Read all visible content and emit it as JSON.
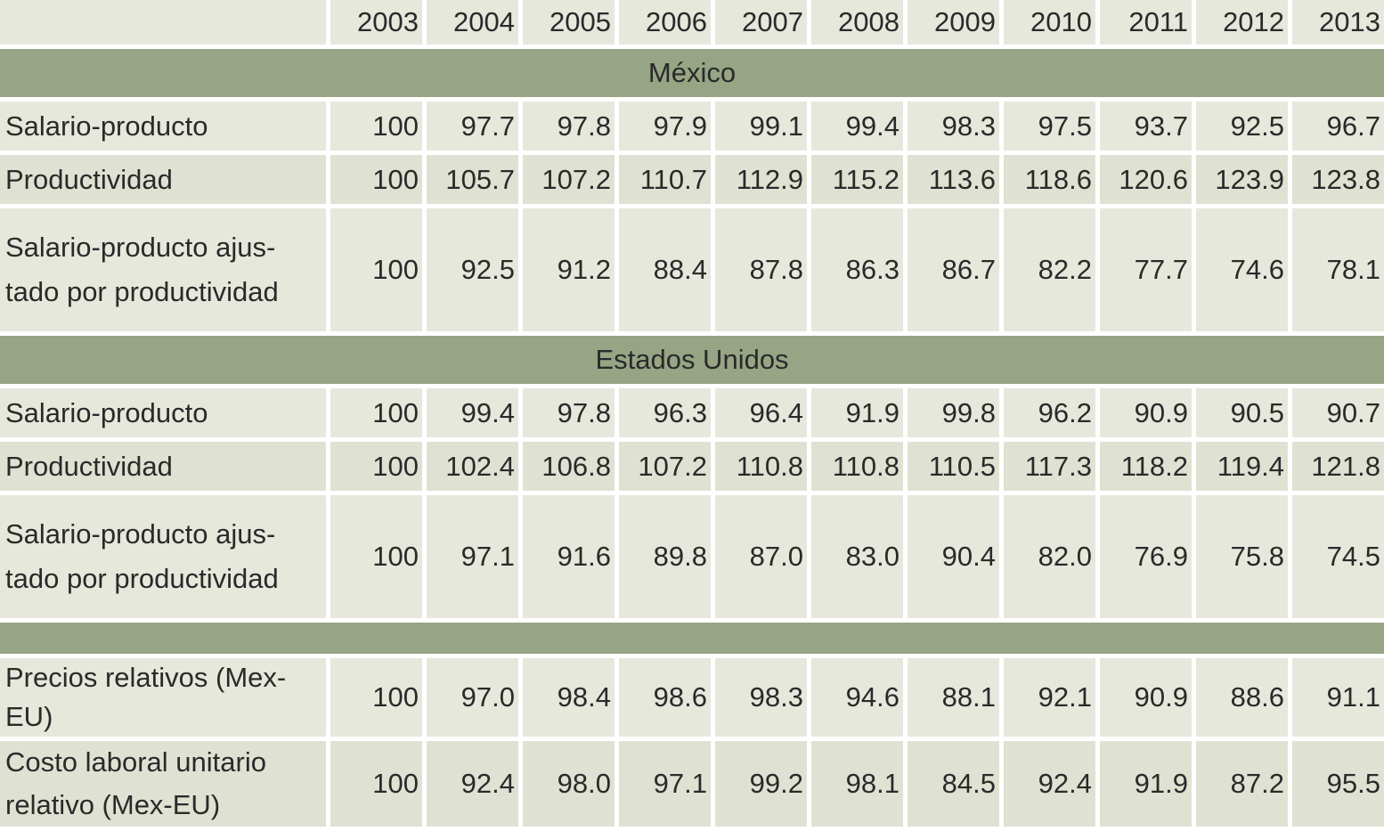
{
  "years": [
    "2003",
    "2004",
    "2005",
    "2006",
    "2007",
    "2008",
    "2009",
    "2010",
    "2011",
    "2012",
    "2013"
  ],
  "sections": [
    {
      "title": "México",
      "rows": [
        {
          "label": "Salario-producto",
          "values": [
            "100",
            "97.7",
            "97.8",
            "97.9",
            "99.1",
            "99.4",
            "98.3",
            "97.5",
            "93.7",
            "92.5",
            "96.7"
          ]
        },
        {
          "label": "Productividad",
          "values": [
            "100",
            "105.7",
            "107.2",
            "110.7",
            "112.9",
            "115.2",
            "113.6",
            "118.6",
            "120.6",
            "123.9",
            "123.8"
          ]
        },
        {
          "label": "Salario-producto ajus-tado por productividad",
          "values": [
            "100",
            "92.5",
            "91.2",
            "88.4",
            "87.8",
            "86.3",
            "86.7",
            "82.2",
            "77.7",
            "74.6",
            "78.1"
          ]
        }
      ]
    },
    {
      "title": "Estados Unidos",
      "rows": [
        {
          "label": "Salario-producto",
          "values": [
            "100",
            "99.4",
            "97.8",
            "96.3",
            "96.4",
            "91.9",
            "99.8",
            "96.2",
            "90.9",
            "90.5",
            "90.7"
          ]
        },
        {
          "label": "Productividad",
          "values": [
            "100",
            "102.4",
            "106.8",
            "107.2",
            "110.8",
            "110.8",
            "110.5",
            "117.3",
            "118.2",
            "119.4",
            "121.8"
          ]
        },
        {
          "label": "Salario-producto ajus-tado por productividad",
          "values": [
            "100",
            "97.1",
            "91.6",
            "89.8",
            "87.0",
            "83.0",
            "90.4",
            "82.0",
            "76.9",
            "75.8",
            "74.5"
          ]
        }
      ]
    },
    {
      "title": "",
      "rows": [
        {
          "label": "Precios relativos (Mex-EU)",
          "values": [
            "100",
            "97.0",
            "98.4",
            "98.6",
            "98.3",
            "94.6",
            "88.1",
            "92.1",
            "90.9",
            "88.6",
            "91.1"
          ]
        },
        {
          "label": "Costo laboral unitario relativo (Mex-EU)",
          "values": [
            "100",
            "92.4",
            "98.0",
            "97.1",
            "99.2",
            "98.1",
            "84.5",
            "92.4",
            "91.9",
            "87.2",
            "95.5"
          ]
        }
      ]
    }
  ]
}
